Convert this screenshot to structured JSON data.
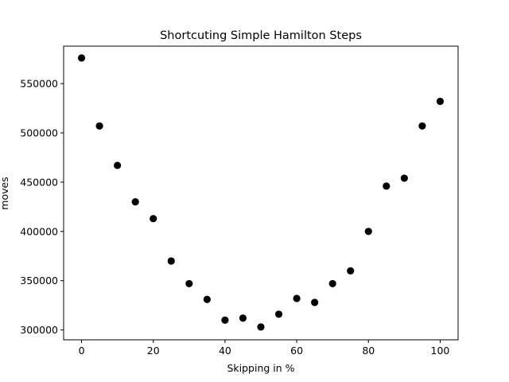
{
  "chart_data": {
    "type": "scatter",
    "title": "Shortcuting Simple Hamilton Steps",
    "xlabel": "Skipping in %",
    "ylabel": "moves",
    "xlim": [
      -5,
      105
    ],
    "ylim": [
      290000,
      588000
    ],
    "xticks": [
      0,
      20,
      40,
      60,
      80,
      100
    ],
    "yticks": [
      300000,
      350000,
      400000,
      450000,
      500000,
      550000
    ],
    "marker_color": "#000000",
    "grid": false,
    "points": [
      {
        "x": 0,
        "y": 576000
      },
      {
        "x": 5,
        "y": 507000
      },
      {
        "x": 10,
        "y": 467000
      },
      {
        "x": 15,
        "y": 430000
      },
      {
        "x": 20,
        "y": 413000
      },
      {
        "x": 25,
        "y": 370000
      },
      {
        "x": 30,
        "y": 347000
      },
      {
        "x": 35,
        "y": 331000
      },
      {
        "x": 40,
        "y": 310000
      },
      {
        "x": 45,
        "y": 312000
      },
      {
        "x": 50,
        "y": 303000
      },
      {
        "x": 55,
        "y": 316000
      },
      {
        "x": 60,
        "y": 332000
      },
      {
        "x": 65,
        "y": 328000
      },
      {
        "x": 70,
        "y": 347000
      },
      {
        "x": 75,
        "y": 360000
      },
      {
        "x": 80,
        "y": 400000
      },
      {
        "x": 85,
        "y": 446000
      },
      {
        "x": 90,
        "y": 454000
      },
      {
        "x": 95,
        "y": 507000
      },
      {
        "x": 100,
        "y": 532000
      }
    ]
  }
}
